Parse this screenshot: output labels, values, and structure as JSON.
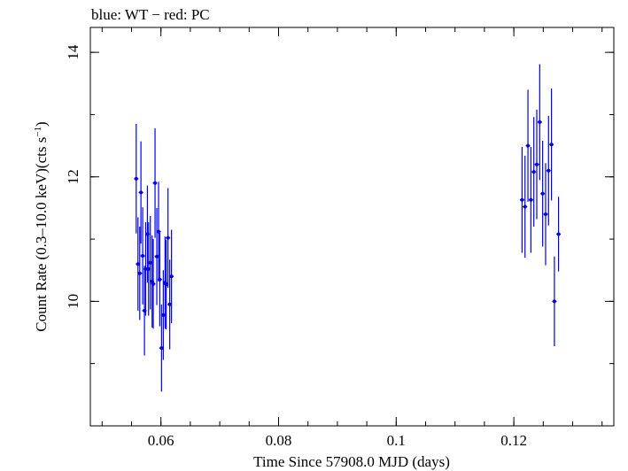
{
  "chart_data": {
    "type": "scatter",
    "title": "blue: WT − red: PC",
    "xlabel": "Time Since 57908.0 MJD (days)",
    "ylabel_main": "Count Rate (0.3–10.0 keV)(cts s",
    "ylabel_sup": "−1",
    "ylabel_close": ")",
    "xlim": [
      0.048,
      0.137
    ],
    "ylim": [
      8.0,
      14.4
    ],
    "x_ticks": [
      {
        "v": 0.06,
        "label": "0.06"
      },
      {
        "v": 0.08,
        "label": "0.08"
      },
      {
        "v": 0.1,
        "label": "0.1"
      },
      {
        "v": 0.12,
        "label": "0.12"
      }
    ],
    "y_ticks": [
      {
        "v": 10,
        "label": "10"
      },
      {
        "v": 12,
        "label": "12"
      },
      {
        "v": 14,
        "label": "14"
      }
    ],
    "x_minor_step": 0.005,
    "y_minor_step": 1,
    "grid": false,
    "legend": "none",
    "series": [
      {
        "color": "#0000ee",
        "points": [
          {
            "x": 0.0558,
            "y": 11.97,
            "err": 0.88
          },
          {
            "x": 0.0561,
            "y": 10.6,
            "err": 0.75
          },
          {
            "x": 0.0564,
            "y": 10.45,
            "err": 0.75
          },
          {
            "x": 0.0566,
            "y": 11.75,
            "err": 0.82
          },
          {
            "x": 0.0569,
            "y": 10.73,
            "err": 0.78
          },
          {
            "x": 0.0572,
            "y": 9.85,
            "err": 0.72
          },
          {
            "x": 0.0574,
            "y": 10.52,
            "err": 0.75
          },
          {
            "x": 0.0577,
            "y": 11.08,
            "err": 0.78
          },
          {
            "x": 0.0579,
            "y": 10.52,
            "err": 0.75
          },
          {
            "x": 0.0582,
            "y": 10.62,
            "err": 0.75
          },
          {
            "x": 0.0585,
            "y": 10.32,
            "err": 0.74
          },
          {
            "x": 0.0587,
            "y": 10.28,
            "err": 0.72
          },
          {
            "x": 0.059,
            "y": 11.9,
            "err": 0.88
          },
          {
            "x": 0.0593,
            "y": 10.72,
            "err": 0.78
          },
          {
            "x": 0.0596,
            "y": 11.12,
            "err": 0.8
          },
          {
            "x": 0.0598,
            "y": 10.35,
            "err": 0.75
          },
          {
            "x": 0.0601,
            "y": 9.25,
            "err": 0.7
          },
          {
            "x": 0.0604,
            "y": 9.78,
            "err": 0.72
          },
          {
            "x": 0.0607,
            "y": 10.3,
            "err": 0.74
          },
          {
            "x": 0.0609,
            "y": 10.27,
            "err": 0.72
          },
          {
            "x": 0.0612,
            "y": 11.02,
            "err": 0.8
          },
          {
            "x": 0.0615,
            "y": 9.95,
            "err": 0.72
          },
          {
            "x": 0.0618,
            "y": 10.4,
            "err": 0.75
          },
          {
            "x": 0.1214,
            "y": 11.63,
            "err": 0.85
          },
          {
            "x": 0.1219,
            "y": 11.52,
            "err": 0.82
          },
          {
            "x": 0.1224,
            "y": 12.5,
            "err": 0.9
          },
          {
            "x": 0.1229,
            "y": 11.63,
            "err": 0.85
          },
          {
            "x": 0.1234,
            "y": 12.08,
            "err": 0.88
          },
          {
            "x": 0.1239,
            "y": 12.2,
            "err": 0.88
          },
          {
            "x": 0.1244,
            "y": 12.88,
            "err": 0.93
          },
          {
            "x": 0.1249,
            "y": 11.73,
            "err": 0.85
          },
          {
            "x": 0.1254,
            "y": 11.4,
            "err": 0.82
          },
          {
            "x": 0.1259,
            "y": 12.1,
            "err": 0.88
          },
          {
            "x": 0.1264,
            "y": 12.52,
            "err": 0.9
          },
          {
            "x": 0.1269,
            "y": 10.0,
            "err": 0.72
          },
          {
            "x": 0.1276,
            "y": 11.08,
            "err": 0.6
          }
        ]
      }
    ]
  }
}
